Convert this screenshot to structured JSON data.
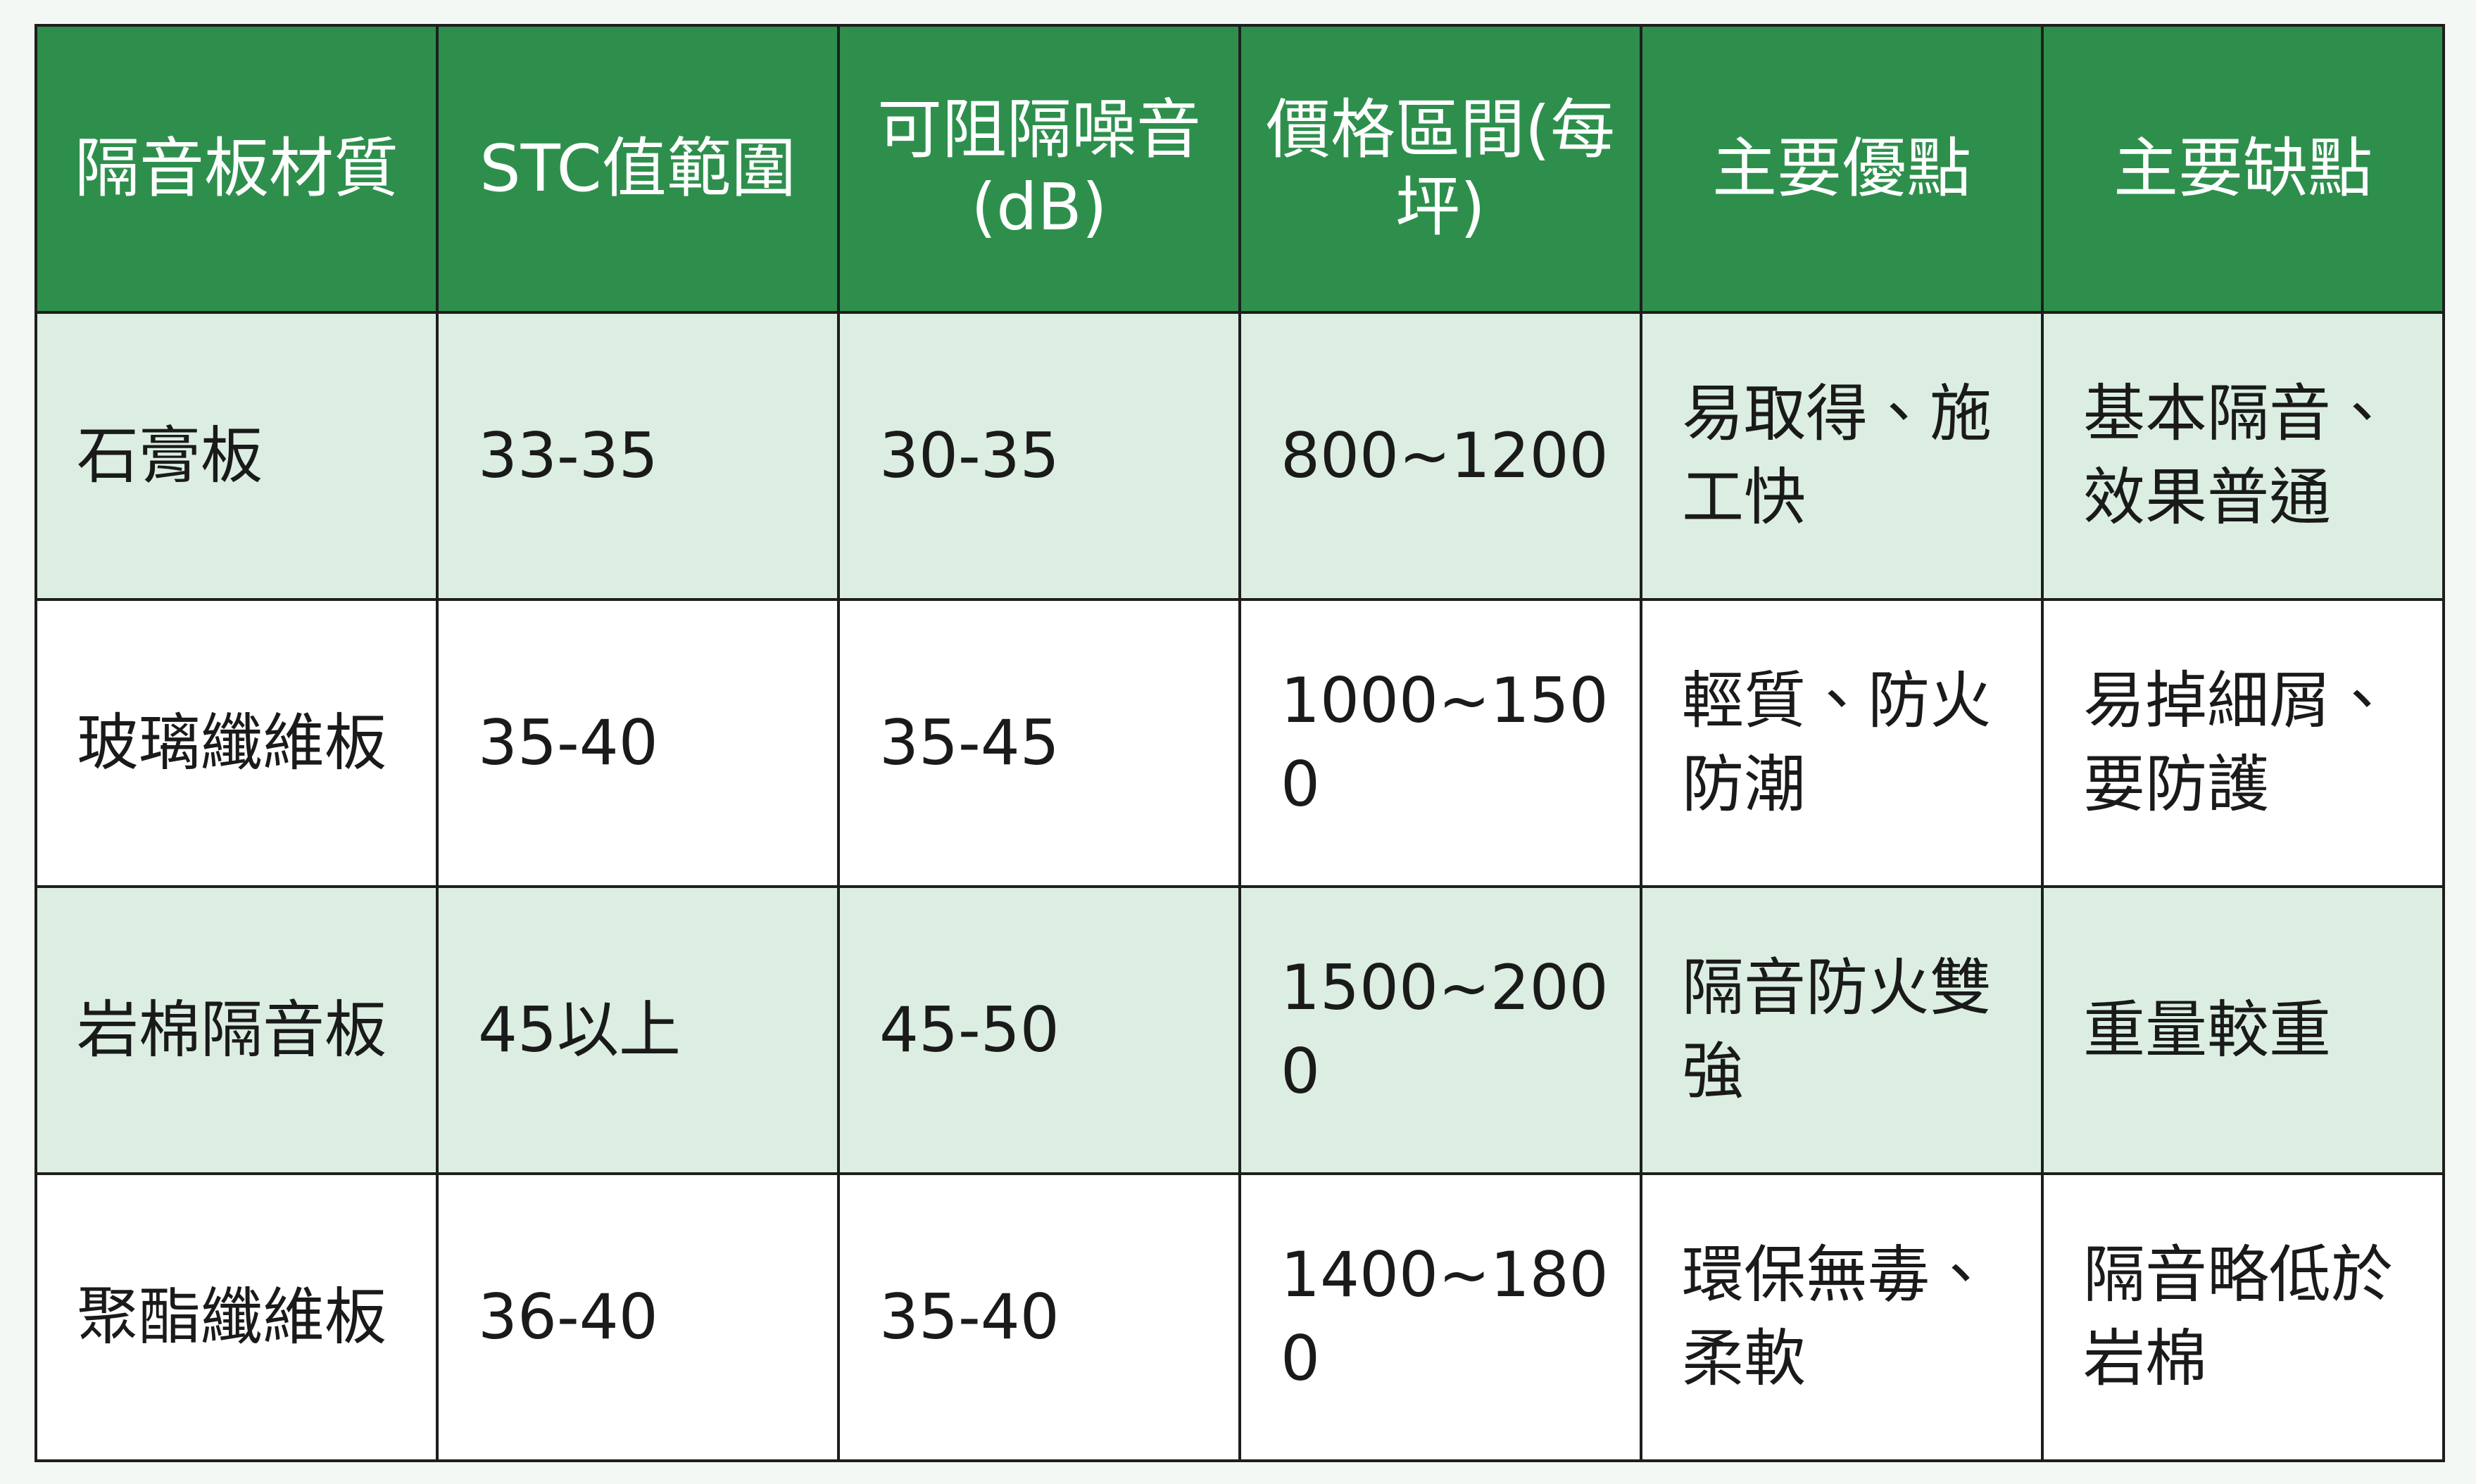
{
  "table": {
    "headers": [
      "隔音板材質",
      "STC值範圍",
      "可阻隔噪音(dB)",
      "價格區間(每坪)",
      "主要優點",
      "主要缺點"
    ],
    "rows": [
      [
        "石膏板",
        "33-35",
        "30-35",
        "800~1200",
        "易取得、施工快",
        "基本隔音、效果普通"
      ],
      [
        "玻璃纖維板",
        "35-40",
        "35-45",
        "1000~1500",
        "輕質、防火防潮",
        "易掉細屑、要防護"
      ],
      [
        "岩棉隔音板",
        "45以上",
        "45-50",
        "1500~2000",
        "隔音防火雙強",
        "重量較重"
      ],
      [
        "聚酯纖維板",
        "36-40",
        "35-40",
        "1400~1800",
        "環保無毒、柔軟",
        "隔音略低於岩棉"
      ]
    ]
  }
}
